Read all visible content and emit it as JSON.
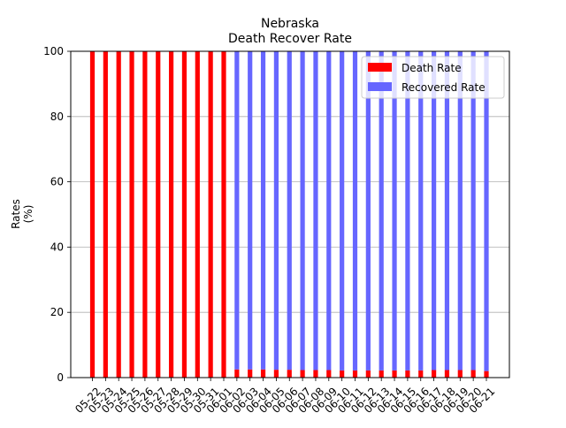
{
  "chart_data": {
    "type": "bar",
    "stacked": true,
    "title": "Nebraska",
    "subtitle": "Death Recover Rate",
    "xlabel": "",
    "ylabel": "Rates\n(%)",
    "ylim": [
      0,
      100
    ],
    "yticks": [
      0,
      20,
      40,
      60,
      80,
      100
    ],
    "grid": "y",
    "legend_position": "top-right",
    "categories": [
      "05-22",
      "05-23",
      "05-24",
      "05-25",
      "05-26",
      "05-27",
      "05-28",
      "05-29",
      "05-30",
      "05-31",
      "06-01",
      "06-02",
      "06-03",
      "06-04",
      "06-05",
      "06-06",
      "06-07",
      "06-08",
      "06-09",
      "06-10",
      "06-11",
      "06-12",
      "06-13",
      "06-14",
      "06-15",
      "06-16",
      "06-17",
      "06-18",
      "06-19",
      "06-20",
      "06-21"
    ],
    "series": [
      {
        "name": "Death Rate",
        "color": "#ff0000",
        "values": [
          100,
          100,
          100,
          100,
          100,
          100,
          100,
          100,
          100,
          100,
          100,
          2.5,
          2.5,
          2.5,
          2.4,
          2.4,
          2.3,
          2.3,
          2.3,
          2.2,
          2.2,
          2.2,
          2.2,
          2.2,
          2.2,
          2.2,
          2.3,
          2.3,
          2.3,
          2.3,
          2.0
        ]
      },
      {
        "name": "Recovered Rate",
        "color": "#6666ff",
        "values": [
          0,
          0,
          0,
          0,
          0,
          0,
          0,
          0,
          0,
          0,
          0,
          97.5,
          97.5,
          97.5,
          97.6,
          97.6,
          97.7,
          97.7,
          97.7,
          97.8,
          97.8,
          97.8,
          97.8,
          97.8,
          97.8,
          97.8,
          97.7,
          97.7,
          97.7,
          97.7,
          98.0
        ]
      }
    ]
  }
}
